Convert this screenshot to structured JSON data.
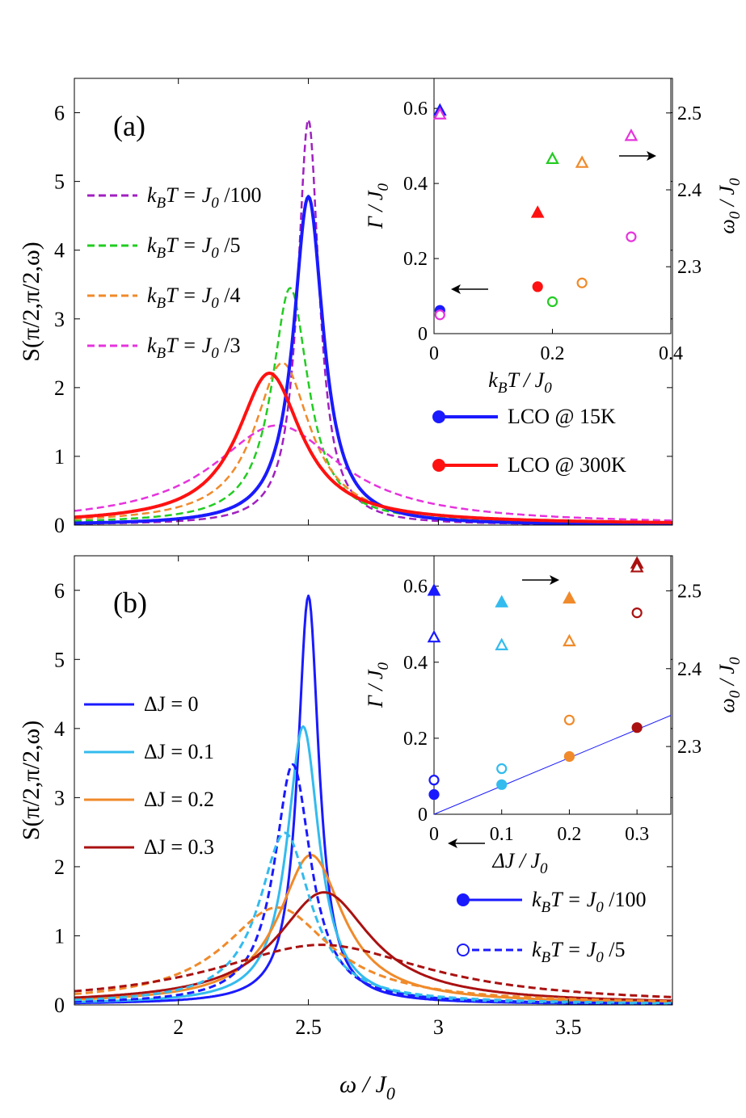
{
  "figure": {
    "xlabel_main": "ω / J",
    "xlabel_sub": "0"
  },
  "chart_data": [
    {
      "panel": "a",
      "type": "line",
      "panel_label": "(a)",
      "ylabel": "S(π/2,π/2,ω)",
      "xlim": [
        1.6,
        3.9
      ],
      "ylim": [
        0,
        6.5
      ],
      "xticks": [
        2,
        2.5,
        3,
        3.5
      ],
      "yticks": [
        0,
        1,
        2,
        3,
        4,
        5,
        6
      ],
      "ytick_labels": [
        "0",
        "1",
        "2",
        "3",
        "4",
        "5",
        "6"
      ],
      "legend": [
        {
          "text": "k",
          "sub1": "B",
          "mid": "T = J",
          "sub2": "0",
          "tail": " /100",
          "color": "#a020c0",
          "dash": true
        },
        {
          "text": "k",
          "sub1": "B",
          "mid": "T = J",
          "sub2": "0",
          "tail": " /5",
          "color": "#22cc22",
          "dash": true
        },
        {
          "text": "k",
          "sub1": "B",
          "mid": "T = J",
          "sub2": "0",
          "tail": " /4",
          "color": "#f08a2a",
          "dash": true
        },
        {
          "text": "k",
          "sub1": "B",
          "mid": "T = J",
          "sub2": "0",
          "tail": " /3",
          "color": "#e633dd",
          "dash": true
        }
      ],
      "legend2": [
        {
          "label": "LCO @ 15K",
          "color": "#1a1aff"
        },
        {
          "label": "LCO @ 300K",
          "color": "#ff1111"
        }
      ],
      "series": [
        {
          "name": "kBT = J0/100",
          "color": "#a020c0",
          "dash": true,
          "width": 2.5,
          "center": 2.5,
          "gamma": 0.05,
          "amp": 5.9,
          "tail": 0
        },
        {
          "name": "kBT = J0/5",
          "color": "#22cc22",
          "dash": true,
          "width": 2.5,
          "center": 2.43,
          "gamma": 0.085,
          "amp": 3.4,
          "tail": 0.05
        },
        {
          "name": "kBT = J0/4",
          "color": "#f08a2a",
          "dash": true,
          "width": 2.5,
          "center": 2.4,
          "gamma": 0.13,
          "amp": 2.3,
          "tail": 0.06
        },
        {
          "name": "kBT = J0/3",
          "color": "#e633dd",
          "dash": true,
          "width": 2.5,
          "center": 2.38,
          "gamma": 0.3,
          "amp": 1.4,
          "tail": 0.05
        },
        {
          "name": "LCO @ 15K",
          "color": "#1a1aff",
          "dash": false,
          "width": 4,
          "center": 2.5,
          "gamma": 0.07,
          "amp": 4.78,
          "tail": 0
        },
        {
          "name": "LCO @ 300K",
          "color": "#ff1111",
          "dash": false,
          "width": 4,
          "center": 2.35,
          "gamma": 0.15,
          "amp": 2.15,
          "tail": 0.06
        }
      ],
      "inset": {
        "xlabel": "k",
        "xlabel_sub1": "B",
        "xlabel_mid": "T / J",
        "xlabel_sub2": "0",
        "ylabel_left": "Γ / J",
        "ylabel_left_sub": "0",
        "ylabel_right": "ω",
        "ylabel_right_sub1": "0",
        "ylabel_right_tail": " / J",
        "ylabel_right_sub2": "0",
        "xlim": [
          0,
          0.4
        ],
        "ylim_left": [
          0,
          0.68
        ],
        "ylim_right": [
          2.213,
          2.545
        ],
        "xticks": [
          "0",
          "0.2",
          "0.4"
        ],
        "xtick_values": [
          0,
          0.2,
          0.4
        ],
        "yticks_left": [
          "0",
          "0.2",
          "0.4",
          "0.6"
        ],
        "ytick_left_values": [
          0,
          0.2,
          0.4,
          0.6
        ],
        "yticks_right": [
          "2.3",
          "2.4",
          "2.5"
        ],
        "ytick_right_values": [
          2.3,
          2.4,
          2.5
        ],
        "gamma_points": [
          {
            "x": 0.01,
            "y": 0.062,
            "color": "#1a1aff",
            "filled": true
          },
          {
            "x": 0.01,
            "y": 0.05,
            "color": "#e633dd",
            "filled": false
          },
          {
            "x": 0.175,
            "y": 0.125,
            "color": "#ff1111",
            "filled": true
          },
          {
            "x": 0.2,
            "y": 0.085,
            "color": "#22cc22",
            "filled": false
          },
          {
            "x": 0.25,
            "y": 0.135,
            "color": "#f08a2a",
            "filled": false
          },
          {
            "x": 0.333,
            "y": 0.258,
            "color": "#e633dd",
            "filled": false
          }
        ],
        "omega_points": [
          {
            "x": 0.01,
            "y": 2.503,
            "color": "#1a1aff",
            "filled": true
          },
          {
            "x": 0.01,
            "y": 2.498,
            "color": "#e633dd",
            "filled": false
          },
          {
            "x": 0.175,
            "y": 2.37,
            "color": "#ff1111",
            "filled": true
          },
          {
            "x": 0.2,
            "y": 2.44,
            "color": "#22cc22",
            "filled": false
          },
          {
            "x": 0.25,
            "y": 2.435,
            "color": "#f08a2a",
            "filled": false
          },
          {
            "x": 0.333,
            "y": 2.47,
            "color": "#e633dd",
            "filled": false
          }
        ]
      }
    },
    {
      "panel": "b",
      "type": "line",
      "panel_label": "(b)",
      "ylabel": "S(π/2,π/2,ω)",
      "xlim": [
        1.6,
        3.9
      ],
      "ylim": [
        0,
        6.5
      ],
      "xticks": [
        2,
        2.5,
        3,
        3.5
      ],
      "xtick_labels": [
        "2",
        "2.5",
        "3",
        "3.5"
      ],
      "yticks": [
        0,
        1,
        2,
        3,
        4,
        5,
        6
      ],
      "ytick_labels": [
        "0",
        "1",
        "2",
        "3",
        "4",
        "5",
        "6"
      ],
      "legend": [
        {
          "label": "ΔJ = 0",
          "color": "#1a1aff"
        },
        {
          "label": "ΔJ = 0.1",
          "color": "#33bbee"
        },
        {
          "label": "ΔJ = 0.2",
          "color": "#f08a2a"
        },
        {
          "label": "ΔJ = 0.3",
          "color": "#aa1111"
        }
      ],
      "legend2": [
        {
          "text": "k",
          "sub1": "B",
          "mid": "T = J",
          "sub2": "0",
          "tail": " /100",
          "color": "#1a1aff",
          "filled": true,
          "dash": false
        },
        {
          "text": "k",
          "sub1": "B",
          "mid": "T = J",
          "sub2": "0",
          "tail": " /5",
          "color": "#1a1aff",
          "filled": false,
          "dash": true
        }
      ],
      "series": [
        {
          "name": "ΔJ = 0, kBT = J0/100",
          "color": "#1a1aff",
          "dash": false,
          "width": 3,
          "center": 2.5,
          "gamma": 0.05,
          "amp": 5.9,
          "tail": 0.02
        },
        {
          "name": "ΔJ = 0.1, kBT = J0/100",
          "color": "#33bbee",
          "dash": false,
          "width": 3,
          "center": 2.48,
          "gamma": 0.075,
          "amp": 4.0,
          "tail": 0.03
        },
        {
          "name": "ΔJ = 0.2, kBT = J0/100",
          "color": "#f08a2a",
          "dash": false,
          "width": 3,
          "center": 2.51,
          "gamma": 0.15,
          "amp": 2.12,
          "tail": 0.05
        },
        {
          "name": "ΔJ = 0.3, kBT = J0/100",
          "color": "#aa1111",
          "dash": false,
          "width": 3,
          "center": 2.56,
          "gamma": 0.22,
          "amp": 1.57,
          "tail": 0.06
        },
        {
          "name": "ΔJ = 0, kBT = J0/5",
          "color": "#1a1aff",
          "dash": true,
          "width": 3,
          "center": 2.44,
          "gamma": 0.085,
          "amp": 3.45,
          "tail": 0.03
        },
        {
          "name": "ΔJ = 0.1, kBT = J0/5",
          "color": "#33bbee",
          "dash": true,
          "width": 3,
          "center": 2.41,
          "gamma": 0.12,
          "amp": 2.45,
          "tail": 0.04
        },
        {
          "name": "ΔJ = 0.2, kBT = J0/5",
          "color": "#f08a2a",
          "dash": true,
          "width": 3,
          "center": 2.38,
          "gamma": 0.25,
          "amp": 1.35,
          "tail": 0.06
        },
        {
          "name": "ΔJ = 0.3, kBT = J0/5",
          "color": "#aa1111",
          "dash": true,
          "width": 3,
          "center": 2.55,
          "gamma": 0.5,
          "amp": 0.83,
          "tail": 0.04
        }
      ],
      "inset": {
        "xlabel": "ΔJ / J",
        "xlabel_sub": "0",
        "ylabel_left": "Γ / J",
        "ylabel_left_sub": "0",
        "ylabel_right": "ω",
        "ylabel_right_sub1": "0",
        "ylabel_right_tail": " / J",
        "ylabel_right_sub2": "0",
        "xlim": [
          0,
          0.35
        ],
        "ylim_left": [
          0,
          0.68
        ],
        "ylim_right": [
          2.213,
          2.545
        ],
        "xticks": [
          "0",
          "0.1",
          "0.2",
          "0.3"
        ],
        "xtick_values": [
          0,
          0.1,
          0.2,
          0.3
        ],
        "yticks_left": [
          "0",
          "0.2",
          "0.4",
          "0.6"
        ],
        "ytick_left_values": [
          0,
          0.2,
          0.4,
          0.6
        ],
        "yticks_right": [
          "2.3",
          "2.4",
          "2.5"
        ],
        "ytick_right_values": [
          2.3,
          2.4,
          2.5
        ],
        "fit_line": {
          "x": [
            0,
            0.35
          ],
          "y": [
            0,
            0.26
          ],
          "color": "#1a1aff"
        },
        "gamma_points": [
          {
            "x": 0,
            "y": 0.052,
            "color": "#1a1aff",
            "filled": true
          },
          {
            "x": 0,
            "y": 0.09,
            "color": "#1a1aff",
            "filled": false
          },
          {
            "x": 0.1,
            "y": 0.078,
            "color": "#33bbee",
            "filled": true
          },
          {
            "x": 0.1,
            "y": 0.12,
            "color": "#33bbee",
            "filled": false
          },
          {
            "x": 0.2,
            "y": 0.152,
            "color": "#f08a2a",
            "filled": true
          },
          {
            "x": 0.2,
            "y": 0.248,
            "color": "#f08a2a",
            "filled": false
          },
          {
            "x": 0.3,
            "y": 0.228,
            "color": "#aa1111",
            "filled": true
          },
          {
            "x": 0.3,
            "y": 0.53,
            "color": "#aa1111",
            "filled": false
          }
        ],
        "omega_points": [
          {
            "x": 0,
            "y": 2.5,
            "color": "#1a1aff",
            "filled": true
          },
          {
            "x": 0,
            "y": 2.44,
            "color": "#1a1aff",
            "filled": false
          },
          {
            "x": 0.1,
            "y": 2.485,
            "color": "#33bbee",
            "filled": true
          },
          {
            "x": 0.1,
            "y": 2.43,
            "color": "#33bbee",
            "filled": false
          },
          {
            "x": 0.2,
            "y": 2.49,
            "color": "#f08a2a",
            "filled": true
          },
          {
            "x": 0.2,
            "y": 2.435,
            "color": "#f08a2a",
            "filled": false
          },
          {
            "x": 0.3,
            "y": 2.535,
            "color": "#aa1111",
            "filled": true
          },
          {
            "x": 0.3,
            "y": 2.53,
            "color": "#aa1111",
            "filled": false
          }
        ]
      }
    }
  ]
}
